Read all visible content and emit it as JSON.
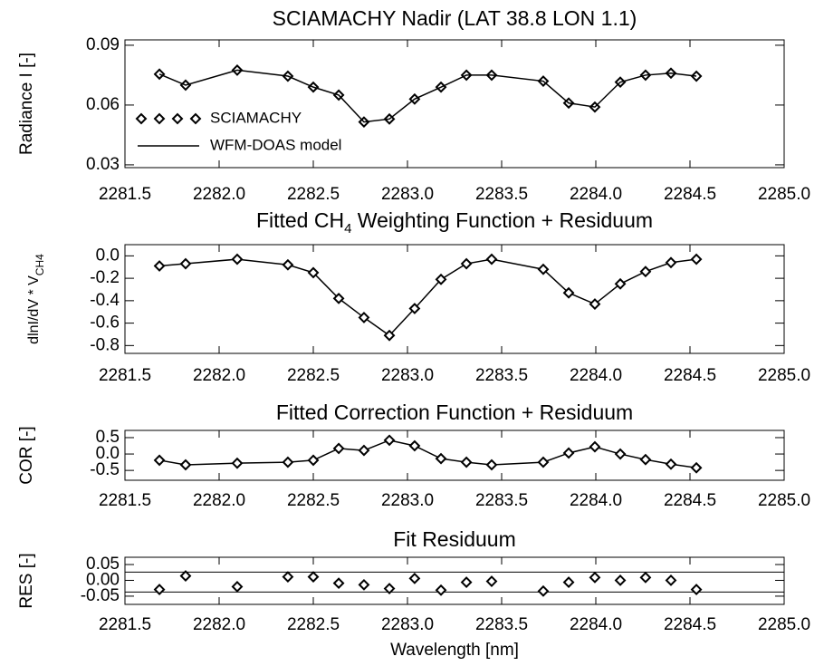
{
  "chart_data": [
    {
      "type": "line",
      "title": "SCIAMACHY Nadir (LAT 38.8 LON 1.1)",
      "ylabel": "Radiance I [-]",
      "x": [
        2281.683,
        2281.822,
        2282.096,
        2282.365,
        2282.5,
        2282.635,
        2282.769,
        2282.904,
        2283.038,
        2283.178,
        2283.313,
        2283.447,
        2283.721,
        2283.856,
        2283.995,
        2284.13,
        2284.264,
        2284.399,
        2284.534
      ],
      "series": [
        {
          "name": "SCIAMACHY",
          "color": "#000000",
          "marker": "diamond",
          "values": [
            0.0755,
            0.07,
            0.0775,
            0.0745,
            0.069,
            0.065,
            0.0515,
            0.053,
            0.063,
            0.069,
            0.075,
            0.075,
            0.072,
            0.061,
            0.059,
            0.0715,
            0.075,
            0.076,
            0.0745
          ]
        },
        {
          "name": "WFM-DOAS model",
          "color": "#000000",
          "marker": "line",
          "values": [
            0.0755,
            0.07,
            0.0775,
            0.0745,
            0.069,
            0.065,
            0.0515,
            0.053,
            0.063,
            0.069,
            0.075,
            0.075,
            0.072,
            0.061,
            0.059,
            0.0715,
            0.075,
            0.076,
            0.0745
          ]
        }
      ],
      "legend": "lower left",
      "xlim": [
        2281.5,
        2285.0
      ],
      "xticks": [
        2281.5,
        {
          "value": 2282,
          "label": "2282.0"
        },
        2282.5,
        {
          "value": 2283,
          "label": "2283.0"
        },
        2283.5,
        {
          "value": 2284,
          "label": "2284.0"
        },
        2284.5,
        {
          "value": 2285,
          "label": "2285.0"
        }
      ],
      "ylim": [
        0.0286,
        0.0927
      ],
      "yticks": [
        0.09,
        0.06,
        0.03
      ]
    },
    {
      "type": "line",
      "title": [
        "Fitted CH",
        "4",
        " Weighting Function + Residuum"
      ],
      "ylabel": [
        "dlnI/dV * V",
        "CH4"
      ],
      "x": [
        2281.683,
        2281.822,
        2282.096,
        2282.365,
        2282.5,
        2282.635,
        2282.769,
        2282.904,
        2283.038,
        2283.178,
        2283.313,
        2283.447,
        2283.721,
        2283.856,
        2283.995,
        2284.13,
        2284.264,
        2284.399,
        2284.534
      ],
      "series": [
        {
          "color": "#000000",
          "marker": "line+diamond",
          "values": [
            -0.09,
            -0.07,
            -0.03,
            -0.08,
            -0.15,
            -0.38,
            -0.55,
            -0.71,
            -0.47,
            -0.21,
            -0.07,
            -0.03,
            -0.12,
            -0.33,
            -0.43,
            -0.25,
            -0.14,
            -0.06,
            -0.03
          ]
        }
      ],
      "xlim": [
        2281.5,
        2285.0
      ],
      "xticks": [
        2281.5,
        {
          "value": 2282,
          "label": "2282.0"
        },
        2282.5,
        {
          "value": 2283,
          "label": "2283.0"
        },
        2283.5,
        {
          "value": 2284,
          "label": "2284.0"
        },
        2284.5,
        {
          "value": 2285,
          "label": "2285.0"
        }
      ],
      "ylim": [
        -0.87,
        0.1
      ],
      "yticks": [
        {
          "value": 0,
          "label": "0.0"
        },
        -0.2,
        -0.4,
        -0.6,
        -0.8
      ]
    },
    {
      "type": "line",
      "title": "Fitted Correction Function + Residuum",
      "ylabel": "COR [-]",
      "x": [
        2281.683,
        2281.822,
        2282.096,
        2282.365,
        2282.5,
        2282.635,
        2282.769,
        2282.904,
        2283.038,
        2283.178,
        2283.313,
        2283.447,
        2283.721,
        2283.856,
        2283.995,
        2284.13,
        2284.264,
        2284.399,
        2284.534
      ],
      "series": [
        {
          "color": "#000000",
          "marker": "line+diamond",
          "values": [
            -0.19,
            -0.33,
            -0.28,
            -0.25,
            -0.19,
            0.17,
            0.11,
            0.42,
            0.25,
            -0.14,
            -0.25,
            -0.33,
            -0.25,
            0.03,
            0.22,
            0.0,
            -0.17,
            -0.31,
            -0.42
          ]
        }
      ],
      "xlim": [
        2281.5,
        2285.0
      ],
      "xticks": [
        2281.5,
        {
          "value": 2282,
          "label": "2282.0"
        },
        2282.5,
        {
          "value": 2283,
          "label": "2283.0"
        },
        2283.5,
        {
          "value": 2284,
          "label": "2284.0"
        },
        2284.5,
        {
          "value": 2285,
          "label": "2285.0"
        }
      ],
      "ylim": [
        -0.8,
        0.72
      ],
      "yticks": [
        0.5,
        {
          "value": 0,
          "label": "0.0"
        },
        -0.5
      ]
    },
    {
      "type": "scatter",
      "title": "Fit Residuum",
      "ylabel": "RES [-]",
      "xlabel": "Wavelength [nm]",
      "x": [
        2281.683,
        2281.822,
        2282.096,
        2282.365,
        2282.5,
        2282.635,
        2282.769,
        2282.904,
        2283.038,
        2283.178,
        2283.313,
        2283.447,
        2283.721,
        2283.856,
        2283.995,
        2284.13,
        2284.264,
        2284.399,
        2284.534
      ],
      "series": [
        {
          "color": "#000000",
          "marker": "diamond",
          "values": [
            -0.029,
            0.014,
            -0.02,
            0.011,
            0.011,
            -0.009,
            -0.014,
            -0.026,
            0.006,
            -0.031,
            -0.006,
            -0.003,
            -0.034,
            -0.006,
            0.009,
            0.0,
            0.009,
            0.0,
            -0.029
          ]
        }
      ],
      "hlines": [
        0.026,
        -0.037
      ],
      "xlim": [
        2281.5,
        2285.0
      ],
      "xticks": [
        2281.5,
        {
          "value": 2282,
          "label": "2282.0"
        },
        2282.5,
        {
          "value": 2283,
          "label": "2283.0"
        },
        2283.5,
        {
          "value": 2284,
          "label": "2284.0"
        },
        2284.5,
        {
          "value": 2285,
          "label": "2285.0"
        }
      ],
      "ylim": [
        -0.076,
        0.073
      ],
      "yticks": [
        0.05,
        {
          "value": 0,
          "label": "0.00"
        },
        -0.05
      ]
    }
  ]
}
